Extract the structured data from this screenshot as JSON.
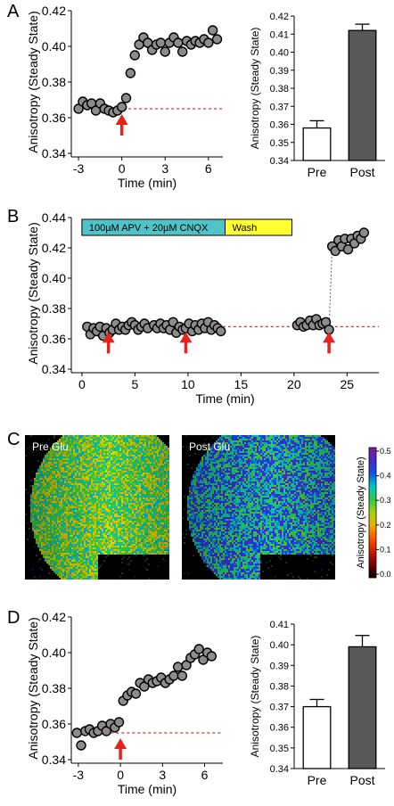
{
  "panels": {
    "A": "A",
    "B": "B",
    "C": "C",
    "D": "D"
  },
  "panel_c": {
    "image_labels": [
      "Pre Glu",
      "Post Glu"
    ],
    "colorbar_label": "Anisotropy (Steady State)",
    "colorbar_ticks": [
      "0.5",
      "0.4",
      "0.3",
      "0.2",
      "0.1",
      "0.0"
    ]
  },
  "colors": {
    "marker": "#8c8c8c",
    "baseline": "#e03030",
    "arrow": "#e8231c",
    "bar_pre": "#ffffff",
    "bar_post": "#595959",
    "apv_box": "#4fc3c8",
    "wash_box": "#ffff33"
  },
  "chart_data": [
    {
      "id": "A-scatter",
      "type": "scatter",
      "xlabel": "Time (min)",
      "ylabel": "Anisotropy (Steady State)",
      "xlim": [
        -3.5,
        7
      ],
      "ylim": [
        0.34,
        0.42
      ],
      "xticks": [
        -3,
        0,
        3,
        6
      ],
      "yticks": [
        0.34,
        0.36,
        0.38,
        0.4,
        0.42
      ],
      "baseline": 0.365,
      "arrows_x": [
        0
      ],
      "x": [
        -3,
        -2.7,
        -2.4,
        -2.1,
        -1.8,
        -1.5,
        -1.2,
        -0.9,
        -0.6,
        -0.3,
        0,
        0.3,
        0.6,
        0.9,
        1.2,
        1.5,
        1.8,
        2.1,
        2.4,
        2.7,
        3.0,
        3.3,
        3.6,
        3.9,
        4.2,
        4.5,
        4.8,
        5.1,
        5.4,
        5.7,
        6.0,
        6.3,
        6.6
      ],
      "y": [
        0.365,
        0.369,
        0.367,
        0.368,
        0.364,
        0.368,
        0.365,
        0.364,
        0.363,
        0.364,
        0.366,
        0.371,
        0.385,
        0.395,
        0.401,
        0.405,
        0.402,
        0.398,
        0.401,
        0.402,
        0.397,
        0.402,
        0.405,
        0.402,
        0.397,
        0.403,
        0.401,
        0.403,
        0.402,
        0.404,
        0.402,
        0.409,
        0.404
      ]
    },
    {
      "id": "A-bar",
      "type": "bar",
      "categories": [
        "Pre",
        "Post"
      ],
      "values": [
        0.358,
        0.412
      ],
      "errors": [
        0.004,
        0.0035
      ],
      "ylabel": "Anisotropy (Steady State)",
      "ylim": [
        0.34,
        0.42
      ],
      "yticks": [
        0.34,
        0.35,
        0.36,
        0.37,
        0.38,
        0.39,
        0.4,
        0.41,
        0.42
      ]
    },
    {
      "id": "B-scatter",
      "type": "scatter",
      "xlabel": "Time (min)",
      "ylabel": "Anisotropy (Steady State)",
      "xlim": [
        -1,
        28
      ],
      "ylim": [
        0.34,
        0.44
      ],
      "xticks": [
        0,
        5,
        10,
        15,
        20,
        25
      ],
      "yticks": [
        0.34,
        0.36,
        0.38,
        0.4,
        0.42,
        0.44
      ],
      "baseline": 0.368,
      "arrows_x": [
        2.5,
        9.8,
        23.3
      ],
      "treatments": [
        {
          "label": "100µM APV + 20µM CNQX",
          "start": 0,
          "end": 13.5
        },
        {
          "label": "Wash",
          "start": 13.5,
          "end": 19.8
        }
      ],
      "x": [
        0.5,
        0.8,
        1.1,
        1.4,
        1.7,
        2.0,
        2.3,
        2.6,
        2.9,
        3.2,
        3.5,
        3.8,
        4.1,
        4.4,
        4.7,
        5.0,
        5.3,
        5.6,
        5.9,
        6.2,
        6.8,
        7.1,
        7.4,
        7.7,
        8.0,
        8.3,
        8.6,
        8.9,
        9.2,
        9.5,
        9.8,
        10.1,
        10.4,
        10.7,
        11.0,
        11.3,
        11.6,
        11.9,
        12.2,
        12.5,
        12.8,
        13.1,
        20.3,
        20.6,
        20.9,
        21.2,
        21.5,
        21.8,
        22.1,
        22.4,
        22.7,
        23.0,
        23.3,
        23.6,
        23.9,
        24.2,
        24.5,
        24.8,
        25.1,
        25.4,
        25.7,
        26.0,
        26.3,
        26.6
      ],
      "y": [
        0.368,
        0.363,
        0.367,
        0.365,
        0.368,
        0.362,
        0.367,
        0.364,
        0.366,
        0.37,
        0.366,
        0.368,
        0.366,
        0.369,
        0.371,
        0.369,
        0.366,
        0.368,
        0.37,
        0.367,
        0.369,
        0.367,
        0.37,
        0.367,
        0.369,
        0.366,
        0.371,
        0.364,
        0.368,
        0.366,
        0.367,
        0.37,
        0.365,
        0.369,
        0.366,
        0.37,
        0.367,
        0.371,
        0.366,
        0.369,
        0.367,
        0.365,
        0.369,
        0.371,
        0.368,
        0.369,
        0.372,
        0.369,
        0.373,
        0.369,
        0.37,
        0.371,
        0.366,
        0.421,
        0.418,
        0.425,
        0.421,
        0.426,
        0.419,
        0.426,
        0.423,
        0.428,
        0.426,
        0.43
      ]
    },
    {
      "id": "D-scatter",
      "type": "scatter",
      "xlabel": "Time (min)",
      "ylabel": "Anisotropy (Steady State)",
      "xlim": [
        -3.5,
        7.3
      ],
      "ylim": [
        0.34,
        0.42
      ],
      "xticks": [
        -3,
        0,
        3,
        6
      ],
      "yticks": [
        0.34,
        0.36,
        0.38,
        0.4,
        0.42
      ],
      "baseline": 0.355,
      "arrows_x": [
        0
      ],
      "x": [
        -3.1,
        -2.8,
        -2.5,
        -2.2,
        -1.9,
        -1.6,
        -1.3,
        -1.0,
        -0.7,
        -0.4,
        -0.1,
        0.2,
        0.5,
        0.8,
        1.1,
        1.4,
        1.7,
        2.0,
        2.3,
        2.6,
        2.9,
        3.2,
        3.5,
        3.8,
        4.1,
        4.4,
        4.7,
        5.0,
        5.3,
        5.6,
        5.9,
        6.2,
        6.5
      ],
      "y": [
        0.355,
        0.348,
        0.356,
        0.357,
        0.355,
        0.356,
        0.359,
        0.356,
        0.36,
        0.358,
        0.361,
        0.373,
        0.376,
        0.378,
        0.377,
        0.383,
        0.381,
        0.385,
        0.383,
        0.384,
        0.386,
        0.383,
        0.385,
        0.387,
        0.392,
        0.387,
        0.393,
        0.397,
        0.399,
        0.402,
        0.396,
        0.4,
        0.398
      ]
    },
    {
      "id": "D-bar",
      "type": "bar",
      "categories": [
        "Pre",
        "Post"
      ],
      "values": [
        0.37,
        0.399
      ],
      "errors": [
        0.0035,
        0.0055
      ],
      "ylabel": "Anisotropy (Steady State)",
      "ylim": [
        0.34,
        0.41
      ],
      "yticks": [
        0.34,
        0.35,
        0.36,
        0.37,
        0.38,
        0.39,
        0.4,
        0.41
      ]
    }
  ]
}
